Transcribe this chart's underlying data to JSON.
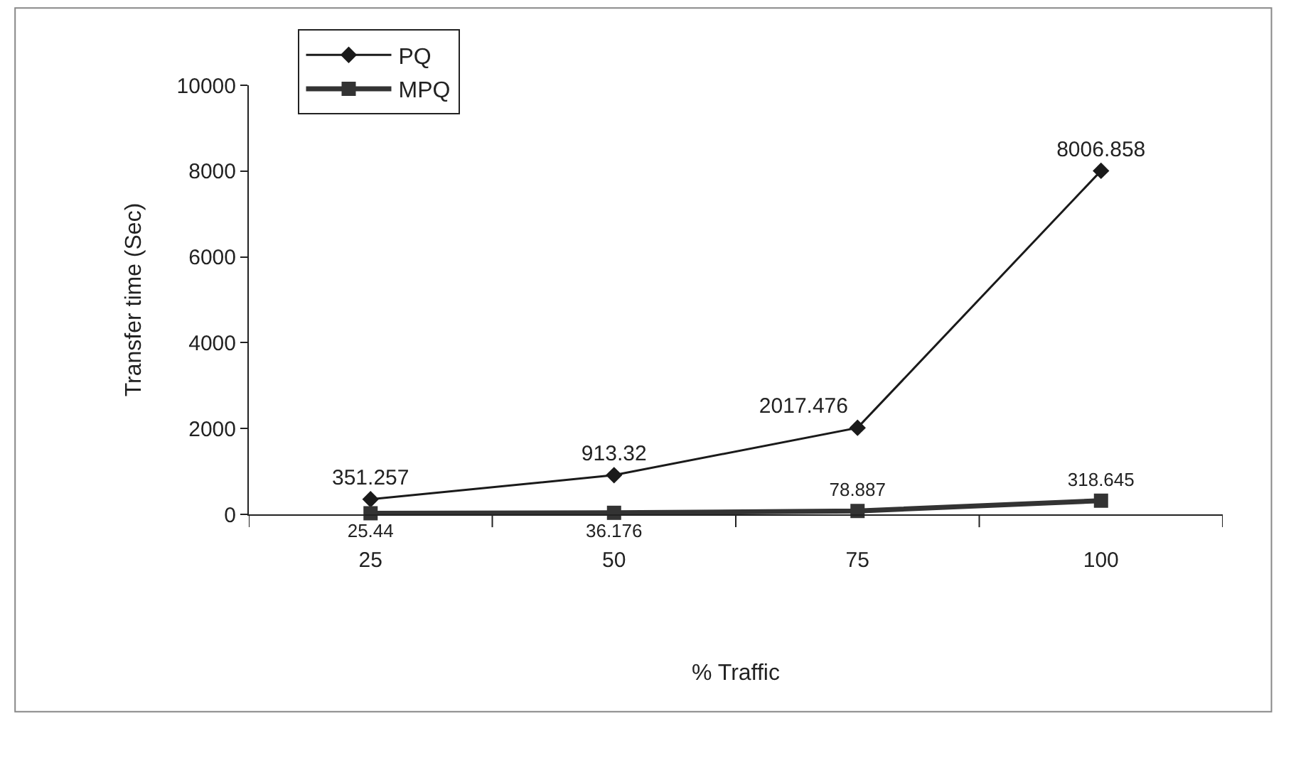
{
  "chart_data": {
    "type": "line",
    "xlabel": "% Traffic",
    "ylabel": "Transfer time (Sec)",
    "categories": [
      "25",
      "50",
      "75",
      "100"
    ],
    "series": [
      {
        "name": "PQ",
        "color": "#1a1a1a",
        "marker": "diamond",
        "values": [
          351.257,
          913.32,
          2017.476,
          8006.858
        ]
      },
      {
        "name": "MPQ",
        "color": "#333333",
        "marker": "square",
        "values": [
          25.44,
          36.176,
          78.887,
          318.645
        ]
      }
    ],
    "ylim": [
      0,
      10000
    ],
    "yticks": [
      0,
      2000,
      4000,
      6000,
      8000,
      10000
    ],
    "data_labels": true,
    "legend": "top left",
    "line_style": "solid"
  }
}
